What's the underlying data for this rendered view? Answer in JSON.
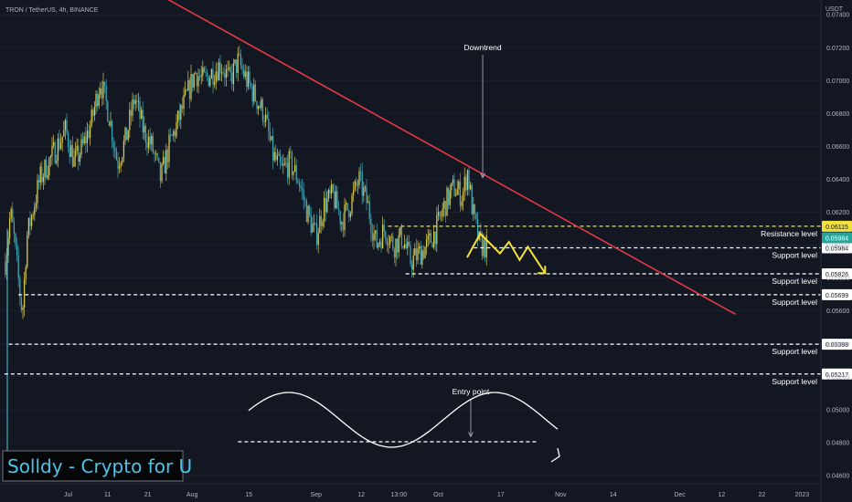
{
  "header": {
    "symbol_line": "TRON / TetherUS, 4h, BINANCE",
    "currency": "USDT"
  },
  "watermark": {
    "text": "Solldy - Crypto for U"
  },
  "colors": {
    "background": "#131722",
    "candle_up": "#d6c94e",
    "candle_down": "#3fa7b5",
    "trendline": "#e03a46",
    "resistance": "#f2e13b",
    "support": "#ffffff",
    "zigzag": "#f2e13b",
    "watermark_text": "#4fc3e8"
  },
  "chart_data": {
    "type": "candlestick",
    "title": "TRON / TetherUS, 4h, BINANCE",
    "y_axis": {
      "unit": "USDT",
      "ylim": [
        0.0455,
        0.0749
      ],
      "ticks": [
        0.074,
        0.072,
        0.07,
        0.068,
        0.066,
        0.064,
        0.062,
        0.06,
        0.058,
        0.056,
        0.054,
        0.052,
        0.05,
        0.048,
        0.046
      ],
      "tick_labels": [
        "0.07400",
        "0.07200",
        "0.07000",
        "0.06800",
        "0.06600",
        "0.06400",
        "0.06200",
        "0.06000",
        "0.05800",
        "0.05600",
        "0.05400",
        "0.05200",
        "0.05000",
        "0.04800",
        "0.04600"
      ]
    },
    "x_axis": {
      "tick_labels": [
        "Jul",
        "11",
        "21",
        "Aug",
        "15",
        "Sep",
        "12",
        "13:00",
        "Oct",
        "17",
        "Nov",
        "14",
        "Dec",
        "12",
        "22",
        "2023"
      ]
    },
    "price_path": [
      [
        0.0,
        0.059
      ],
      [
        0.3,
        0.0605
      ],
      [
        0.6,
        0.062
      ],
      [
        1.0,
        0.0605
      ],
      [
        1.8,
        0.0565
      ],
      [
        2.0,
        0.056
      ],
      [
        2.5,
        0.0605
      ],
      [
        4.0,
        0.064
      ],
      [
        6.0,
        0.066
      ],
      [
        7.0,
        0.067
      ],
      [
        8.0,
        0.065
      ],
      [
        9.0,
        0.066
      ],
      [
        10.0,
        0.0675
      ],
      [
        11.0,
        0.07
      ],
      [
        12.0,
        0.068
      ],
      [
        13.0,
        0.065
      ],
      [
        14.0,
        0.0665
      ],
      [
        15.0,
        0.069
      ],
      [
        16.0,
        0.067
      ],
      [
        17.0,
        0.066
      ],
      [
        18.0,
        0.064
      ],
      [
        19.0,
        0.066
      ],
      [
        21.0,
        0.069
      ],
      [
        22.0,
        0.0705
      ],
      [
        23.0,
        0.07
      ],
      [
        25.0,
        0.071
      ],
      [
        26.0,
        0.07
      ],
      [
        27.0,
        0.0712
      ],
      [
        28.0,
        0.07
      ],
      [
        29.0,
        0.069
      ],
      [
        30.0,
        0.068
      ],
      [
        31.0,
        0.0655
      ],
      [
        32.0,
        0.0645
      ],
      [
        33.0,
        0.065
      ],
      [
        34.0,
        0.064
      ],
      [
        35.0,
        0.062
      ],
      [
        36.0,
        0.0605
      ],
      [
        37.0,
        0.0625
      ],
      [
        38.0,
        0.063
      ],
      [
        39.0,
        0.0615
      ],
      [
        40.0,
        0.0625
      ],
      [
        41.0,
        0.064
      ],
      [
        42.0,
        0.0625
      ],
      [
        43.0,
        0.06
      ],
      [
        44.0,
        0.061
      ],
      [
        45.0,
        0.06
      ],
      [
        46.0,
        0.0605
      ],
      [
        47.0,
        0.059
      ],
      [
        48.0,
        0.0595
      ],
      [
        49.0,
        0.06
      ],
      [
        50.0,
        0.061
      ],
      [
        51.0,
        0.0625
      ],
      [
        52.0,
        0.0635
      ],
      [
        53.0,
        0.063
      ],
      [
        53.6,
        0.0645
      ],
      [
        54.2,
        0.062
      ],
      [
        55.0,
        0.06
      ],
      [
        55.8,
        0.0599
      ]
    ],
    "levels": [
      {
        "value": 0.06115,
        "label": "Resistance level",
        "tag": "0.06115",
        "kind": "resistance",
        "x_start": 0.4728
      },
      {
        "value": 0.05984,
        "label": "Support level",
        "tag": "0.05984",
        "kind": "support",
        "x_start": 0.5772
      },
      {
        "value": 0.05826,
        "label": "Support level",
        "tag": "0.05826",
        "kind": "support",
        "x_start": 0.4941
      },
      {
        "value": 0.05699,
        "label": "Support level",
        "tag": "0.05699",
        "kind": "support",
        "x_start": 0.0225
      },
      {
        "value": 0.05398,
        "label": "Support level",
        "tag": "0.05398",
        "kind": "support",
        "x_start": 0.0107
      },
      {
        "value": 0.05217,
        "label": "Support level",
        "tag": "0.05217",
        "kind": "support",
        "x_start": 0.0054
      }
    ],
    "last_price": {
      "value": 0.05984,
      "tag": "0.05984"
    },
    "trendline": {
      "from": [
        0.195,
        0.0752
      ],
      "to": [
        0.896,
        0.0558
      ]
    },
    "annotations": [
      {
        "text": "Downtrend",
        "anchor": [
          0.588,
          0.0641
        ]
      },
      {
        "text": "Entry point",
        "anchor": [
          0.618,
          0.0482
        ]
      }
    ],
    "zigzag": [
      [
        0.569,
        0.05925
      ],
      [
        0.585,
        0.0607
      ],
      [
        0.609,
        0.0595
      ],
      [
        0.62,
        0.0602
      ],
      [
        0.633,
        0.0591
      ],
      [
        0.643,
        0.0599
      ],
      [
        0.664,
        0.0583
      ]
    ],
    "entry_wave_line": {
      "value": 0.04805,
      "x_range": [
        0.29,
        0.654
      ]
    }
  }
}
